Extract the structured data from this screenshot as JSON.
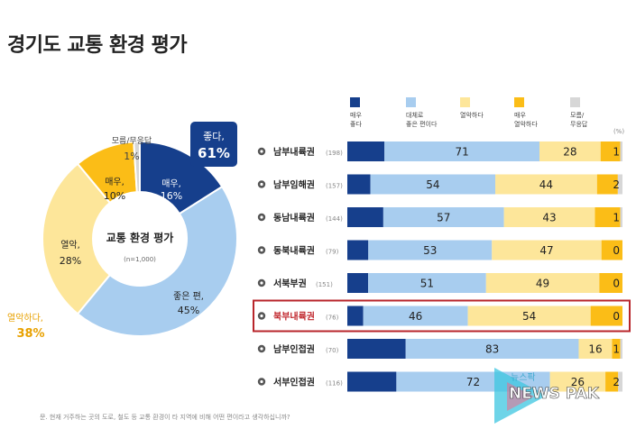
{
  "page": {
    "title": "경기도 교통 환경 평가"
  },
  "donut": {
    "center_title": "교통 환경 평가",
    "center_sub": "(n=1,000)",
    "segments": [
      {
        "name": "매우,",
        "value": 16,
        "label": "16%",
        "color": "#163f8c"
      },
      {
        "name": "좋은 편,",
        "value": 45,
        "label": "45%",
        "color": "#a8cdef"
      },
      {
        "name": "열악,",
        "value": 28,
        "label": "28%",
        "color": "#fde69a"
      },
      {
        "name": "매우,",
        "value": 10,
        "label": "10%",
        "color": "#fbbd17"
      },
      {
        "name": "모름/무응답",
        "value": 1,
        "label": "1%",
        "color": "#d7d7d7"
      }
    ],
    "good_badge": {
      "label": "좋다,",
      "value": "61%"
    },
    "bad_label": {
      "label": "열악하다,",
      "value": "38%"
    }
  },
  "legend": [
    {
      "label": "매우\n좋다",
      "color": "#163f8c"
    },
    {
      "label": "대체로\n좋은 편이다",
      "color": "#a8cdef"
    },
    {
      "label": "열악하다",
      "color": "#fde69a"
    },
    {
      "label": "매우\n열악하다",
      "color": "#fbbd17"
    },
    {
      "label": "모름/\n무응답",
      "color": "#d7d7d7"
    }
  ],
  "legend_unit": "(%)",
  "chart_data": {
    "type": "bar",
    "stacked": true,
    "orientation": "horizontal",
    "categories": [
      "남부내륙권",
      "남부임해권",
      "동남내륙권",
      "동북내륙권",
      "서북부권",
      "북부내륙권",
      "남부인접권",
      "서부인접권"
    ],
    "sample_sizes": [
      "(198)",
      "(157)",
      "(144)",
      "(79)",
      "(151)",
      "(76)",
      "(70)",
      "(116)"
    ],
    "highlight": "북부내륙권",
    "series": [
      {
        "name": "매우\n좋다",
        "color": "#163f8c",
        "values": [
          17,
          10,
          17,
          9,
          9,
          7,
          28,
          23
        ]
      },
      {
        "name": "대체로\n좋은 편이다",
        "color": "#a8cdef",
        "values": [
          71,
          54,
          57,
          53,
          51,
          46,
          83,
          72
        ]
      },
      {
        "name": "열악하다",
        "color": "#fde69a",
        "values": [
          28,
          44,
          43,
          47,
          49,
          54,
          16,
          26
        ]
      },
      {
        "name": "매우\n열악하다",
        "color": "#fbbd17",
        "values": [
          9,
          9,
          12,
          9,
          10,
          14,
          4,
          6
        ]
      },
      {
        "name": "모름/\n무응답",
        "color": "#d7d7d7",
        "values": [
          1,
          2,
          1,
          0,
          0,
          0,
          1,
          2
        ]
      }
    ],
    "value_labels": [
      [
        "",
        "71",
        "28",
        "",
        "1"
      ],
      [
        "",
        "54",
        "44",
        "",
        "2"
      ],
      [
        "",
        "57",
        "43",
        "",
        "1"
      ],
      [
        "",
        "53",
        "47",
        "",
        "0"
      ],
      [
        "",
        "51",
        "49",
        "",
        "0"
      ],
      [
        "",
        "46",
        "54",
        "",
        "0"
      ],
      [
        "",
        "83",
        "16",
        "",
        "1"
      ],
      [
        "",
        "72",
        "26",
        "",
        "2"
      ]
    ]
  },
  "footnote": "문. 현재 거주하는 곳의 도로, 철도 등 교통 환경이 타 지역에 비해 어떤 편이라고 생각하십니까?",
  "watermark": {
    "top": "뉴스팍",
    "main": "NEWS PAK"
  }
}
